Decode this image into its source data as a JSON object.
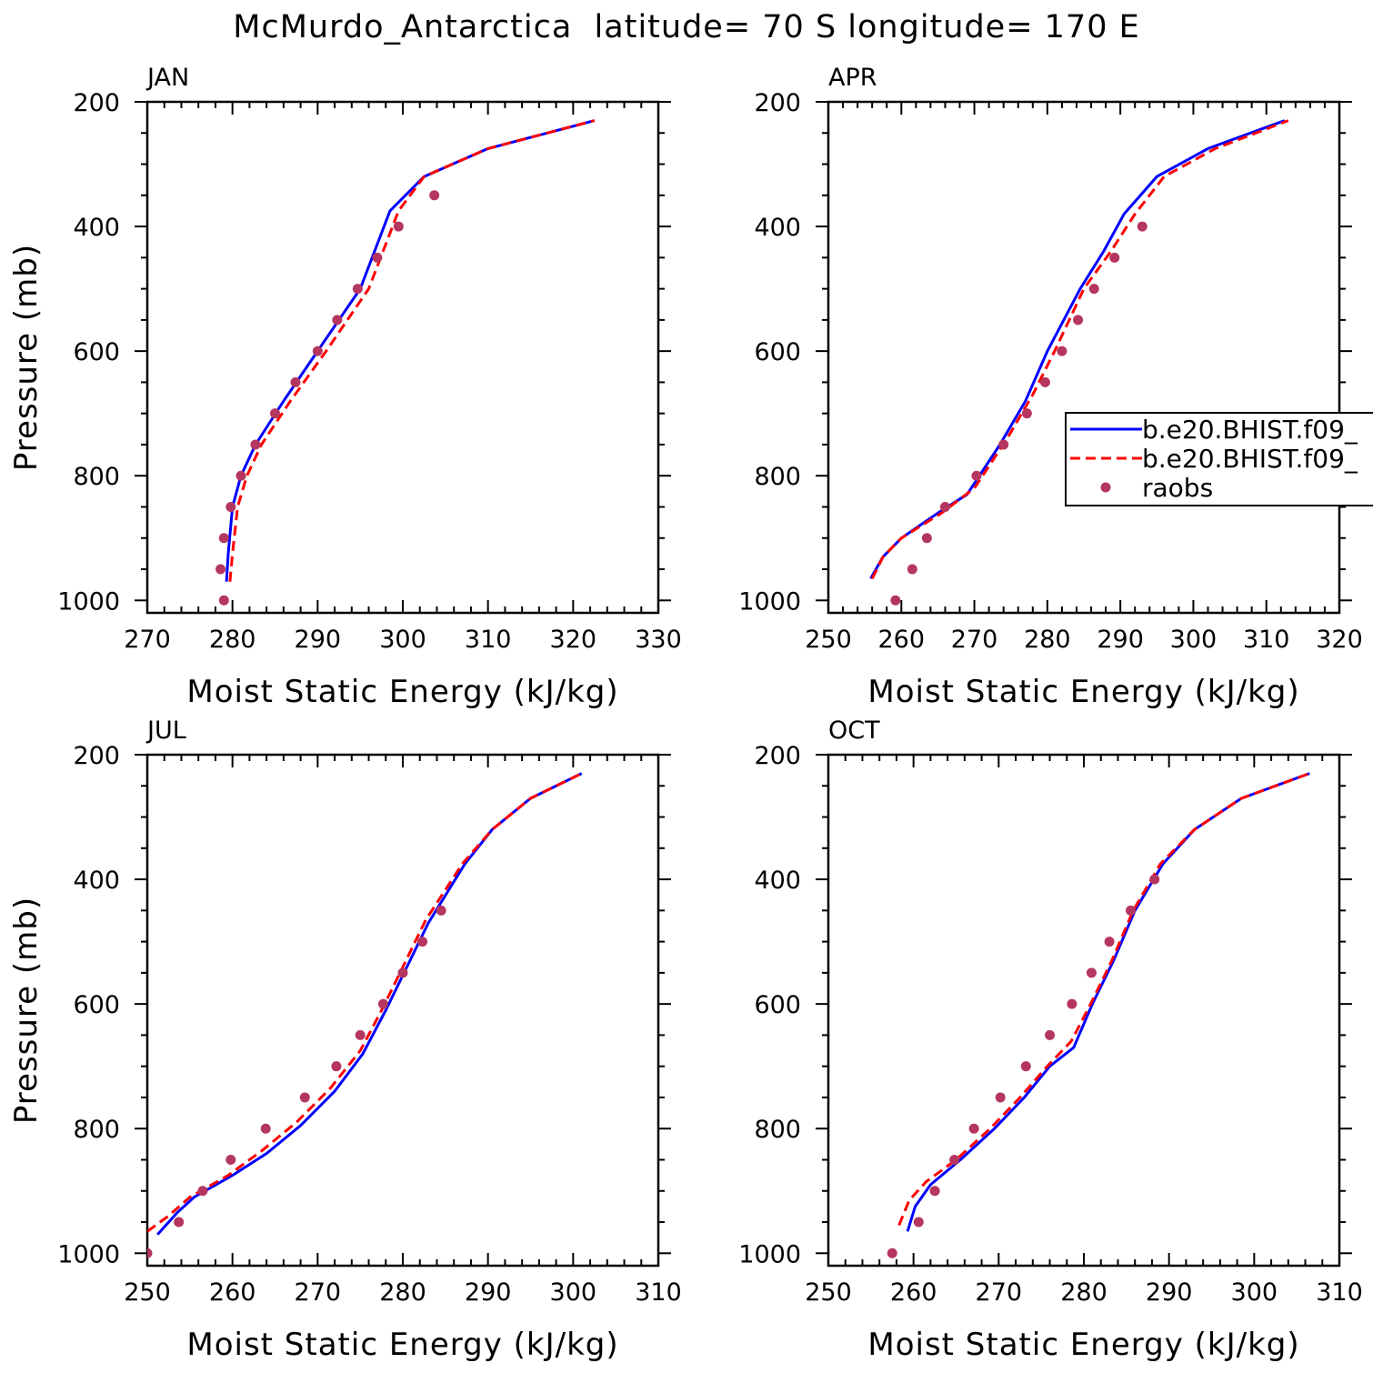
{
  "title": "McMurdo_Antarctica  latitude= 70 S longitude= 170 E",
  "colors": {
    "model1": "#0000ff",
    "model2": "#ff0000",
    "obs": "#b5365f",
    "axis": "#000000"
  },
  "legend": {
    "placement": "right-middle (APR panel, clipped at edge)",
    "entries": [
      {
        "label": "b.e20.BHIST.f09_",
        "style": "solid",
        "color": "#0000ff"
      },
      {
        "label": "b.e20.BHIST.f09_",
        "style": "dashed",
        "color": "#ff0000"
      },
      {
        "label": "raobs",
        "style": "marker",
        "color": "#b5365f"
      }
    ]
  },
  "chart_data": [
    {
      "type": "line",
      "panel_label": "JAN",
      "xlabel": "Moist Static Energy (kJ/kg)",
      "ylabel": "Pressure (mb)",
      "xlim": [
        270,
        330
      ],
      "ylim": [
        1020,
        200
      ],
      "xticks": [
        270,
        280,
        290,
        300,
        310,
        320,
        330
      ],
      "yticks": [
        200,
        400,
        600,
        800,
        1000
      ],
      "grid": false,
      "series": [
        {
          "name": "b.e20.BHIST.f09_",
          "style": "solid",
          "x": [
            279.3,
            279.5,
            280.0,
            281.0,
            282.7,
            286.0,
            290.0,
            295.0,
            298.5,
            302.5,
            310.0,
            322.5
          ],
          "y": [
            970,
            925,
            850,
            800,
            750,
            680,
            600,
            500,
            375,
            320,
            275,
            230
          ]
        },
        {
          "name": "b.e20.BHIST.f09_",
          "style": "dashed",
          "x": [
            279.7,
            280.0,
            280.6,
            281.7,
            283.4,
            286.8,
            291.0,
            296.0,
            299.5,
            302.5,
            310.0,
            322.5
          ],
          "y": [
            970,
            925,
            850,
            800,
            750,
            680,
            600,
            500,
            375,
            320,
            275,
            230
          ]
        },
        {
          "name": "raobs",
          "style": "marker",
          "x": [
            279.0,
            278.6,
            279.0,
            279.8,
            281.0,
            282.7,
            285.0,
            287.4,
            290.0,
            292.3,
            294.7,
            297.0,
            299.5,
            303.7
          ],
          "y": [
            1000,
            950,
            900,
            850,
            800,
            750,
            700,
            650,
            600,
            550,
            500,
            450,
            400,
            350
          ]
        }
      ]
    },
    {
      "type": "line",
      "panel_label": "APR",
      "xlabel": "Moist Static Energy (kJ/kg)",
      "ylabel": "",
      "xlim": [
        250,
        320
      ],
      "ylim": [
        1020,
        200
      ],
      "xticks": [
        250,
        260,
        270,
        280,
        290,
        300,
        310,
        320
      ],
      "yticks": [
        200,
        400,
        600,
        800,
        1000
      ],
      "grid": false,
      "series": [
        {
          "name": "b.e20.BHIST.f09_",
          "style": "solid",
          "x": [
            255.8,
            257.5,
            260.0,
            265.0,
            269.0,
            273.5,
            277.0,
            280.0,
            284.5,
            287.7,
            290.5,
            295.0,
            302.0,
            312.5
          ],
          "y": [
            965,
            930,
            900,
            860,
            830,
            750,
            680,
            600,
            500,
            440,
            380,
            320,
            275,
            230
          ]
        },
        {
          "name": "b.e20.BHIST.f09_",
          "style": "dashed",
          "x": [
            256.0,
            257.5,
            260.0,
            265.5,
            270.0,
            274.5,
            278.0,
            281.0,
            285.0,
            288.7,
            292.0,
            296.0,
            303.0,
            313.0
          ],
          "y": [
            965,
            930,
            900,
            860,
            820,
            740,
            670,
            600,
            500,
            440,
            380,
            320,
            275,
            230
          ]
        },
        {
          "name": "raobs",
          "style": "marker",
          "x": [
            259.2,
            261.5,
            263.5,
            266.0,
            270.3,
            274.0,
            277.2,
            279.7,
            282.0,
            284.2,
            286.4,
            289.2,
            293.0
          ],
          "y": [
            1000,
            950,
            900,
            850,
            800,
            750,
            700,
            650,
            600,
            550,
            500,
            450,
            400
          ]
        }
      ]
    },
    {
      "type": "line",
      "panel_label": "JUL",
      "xlabel": "Moist Static Energy (kJ/kg)",
      "ylabel": "Pressure (mb)",
      "xlim": [
        250,
        310
      ],
      "ylim": [
        1020,
        200
      ],
      "xticks": [
        250,
        260,
        270,
        280,
        290,
        300,
        310
      ],
      "yticks": [
        200,
        400,
        600,
        800,
        1000
      ],
      "grid": false,
      "series": [
        {
          "name": "b.e20.BHIST.f09_",
          "style": "solid",
          "x": [
            251.2,
            253.5,
            255.5,
            260.0,
            264.0,
            268.0,
            272.0,
            275.3,
            278.0,
            280.5,
            283.0,
            287.3,
            290.5,
            295.0,
            301.0
          ],
          "y": [
            970,
            935,
            910,
            875,
            840,
            795,
            740,
            680,
            610,
            540,
            470,
            375,
            320,
            270,
            230
          ]
        },
        {
          "name": "b.e20.BHIST.f09_",
          "style": "dashed",
          "x": [
            250.0,
            252.5,
            255.0,
            259.5,
            263.5,
            267.5,
            271.5,
            275.0,
            277.7,
            280.2,
            282.7,
            287.0,
            290.5,
            295.0,
            301.0
          ],
          "y": [
            965,
            940,
            910,
            875,
            835,
            790,
            735,
            675,
            605,
            535,
            465,
            375,
            320,
            270,
            230
          ]
        },
        {
          "name": "raobs",
          "style": "marker",
          "x": [
            250.0,
            253.7,
            256.5,
            259.8,
            263.9,
            268.5,
            272.2,
            275.0,
            277.7,
            280.0,
            282.3,
            284.5
          ],
          "y": [
            1000,
            950,
            900,
            850,
            800,
            750,
            700,
            650,
            600,
            550,
            500,
            450
          ]
        }
      ]
    },
    {
      "type": "line",
      "panel_label": "OCT",
      "xlabel": "Moist Static Energy (kJ/kg)",
      "ylabel": "",
      "xlim": [
        250,
        310
      ],
      "ylim": [
        1020,
        200
      ],
      "xticks": [
        250,
        260,
        270,
        280,
        290,
        300,
        310
      ],
      "yticks": [
        200,
        400,
        600,
        800,
        1000
      ],
      "grid": false,
      "series": [
        {
          "name": "b.e20.BHIST.f09_",
          "style": "solid",
          "x": [
            259.3,
            260.2,
            262.0,
            265.5,
            269.5,
            273.0,
            276.0,
            278.8,
            281.0,
            283.5,
            286.0,
            289.3,
            293.0,
            298.5,
            306.5
          ],
          "y": [
            965,
            925,
            890,
            850,
            800,
            750,
            700,
            670,
            600,
            530,
            450,
            375,
            320,
            270,
            230
          ]
        },
        {
          "name": "b.e20.BHIST.f09_",
          "style": "dashed",
          "x": [
            258.3,
            259.5,
            261.5,
            265.0,
            269.0,
            272.5,
            275.7,
            278.5,
            280.8,
            283.3,
            285.8,
            289.0,
            293.0,
            298.5,
            306.5
          ],
          "y": [
            955,
            915,
            885,
            850,
            800,
            750,
            700,
            660,
            600,
            530,
            450,
            375,
            320,
            270,
            230
          ]
        },
        {
          "name": "raobs",
          "style": "marker",
          "x": [
            257.5,
            260.6,
            262.5,
            264.8,
            267.1,
            270.2,
            273.2,
            276.0,
            278.6,
            280.9,
            283.0,
            285.5,
            288.3
          ],
          "y": [
            1000,
            950,
            900,
            850,
            800,
            750,
            700,
            650,
            600,
            550,
            500,
            450,
            400
          ]
        }
      ]
    }
  ]
}
